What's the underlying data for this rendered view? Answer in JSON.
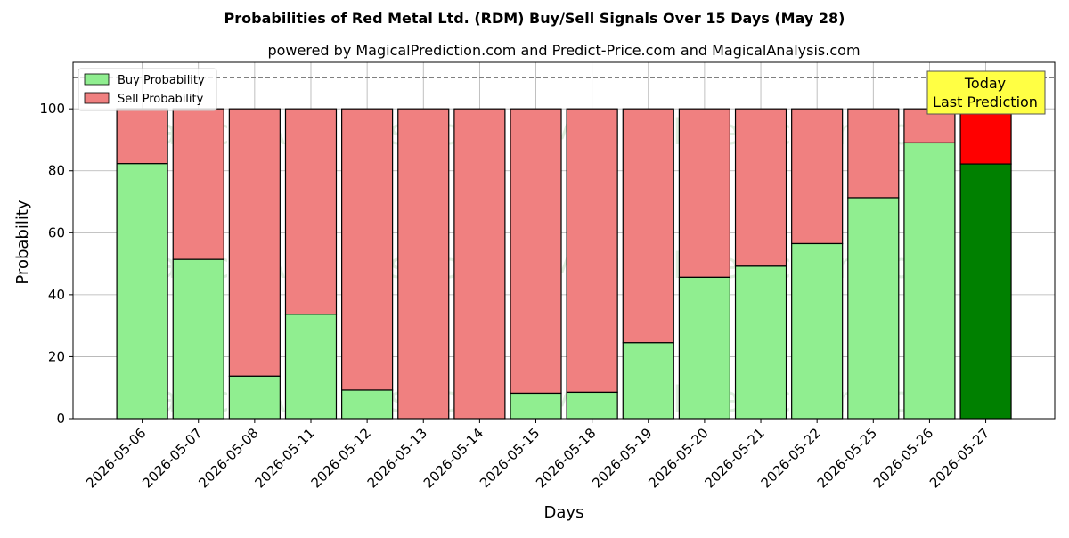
{
  "chart_data": {
    "type": "bar",
    "stacked": true,
    "title": "Probabilities of Red Metal Ltd. (RDM) Buy/Sell Signals Over 15 Days (May 28)",
    "subtitle": "powered by MagicalPrediction.com and Predict-Price.com and MagicalAnalysis.com",
    "xlabel": "Days",
    "ylabel": "Probability",
    "ylim": [
      0,
      115
    ],
    "yticks": [
      0,
      20,
      40,
      60,
      80,
      100
    ],
    "reference_line": 110,
    "grid": true,
    "legend_position": "top-left",
    "categories": [
      "2026-05-06",
      "2026-05-07",
      "2026-05-08",
      "2026-05-11",
      "2026-05-12",
      "2026-05-13",
      "2026-05-14",
      "2026-05-15",
      "2026-05-18",
      "2026-05-19",
      "2026-05-20",
      "2026-05-21",
      "2026-05-22",
      "2026-05-25",
      "2026-05-26",
      "2026-05-27"
    ],
    "series": [
      {
        "name": "Buy Probability",
        "color": "#90ee90",
        "highlight_color": "#008000",
        "values": [
          82.3,
          51.4,
          13.7,
          33.7,
          9.2,
          0,
          0,
          8.2,
          8.5,
          24.5,
          45.6,
          49.2,
          56.5,
          71.3,
          89.0,
          82.2
        ]
      },
      {
        "name": "Sell Probability",
        "color": "#f08080",
        "highlight_color": "#ff0000",
        "values": [
          17.7,
          48.6,
          86.3,
          66.3,
          90.8,
          100,
          100,
          91.8,
          91.5,
          75.5,
          54.4,
          50.8,
          43.5,
          28.7,
          11.0,
          17.8
        ]
      }
    ],
    "highlight_index": 15,
    "annotation": {
      "line1": "Today",
      "line2": "Last Prediction"
    },
    "watermarks": [
      "MagicalAnalysis.com",
      "MagicalPrediction.com"
    ]
  }
}
